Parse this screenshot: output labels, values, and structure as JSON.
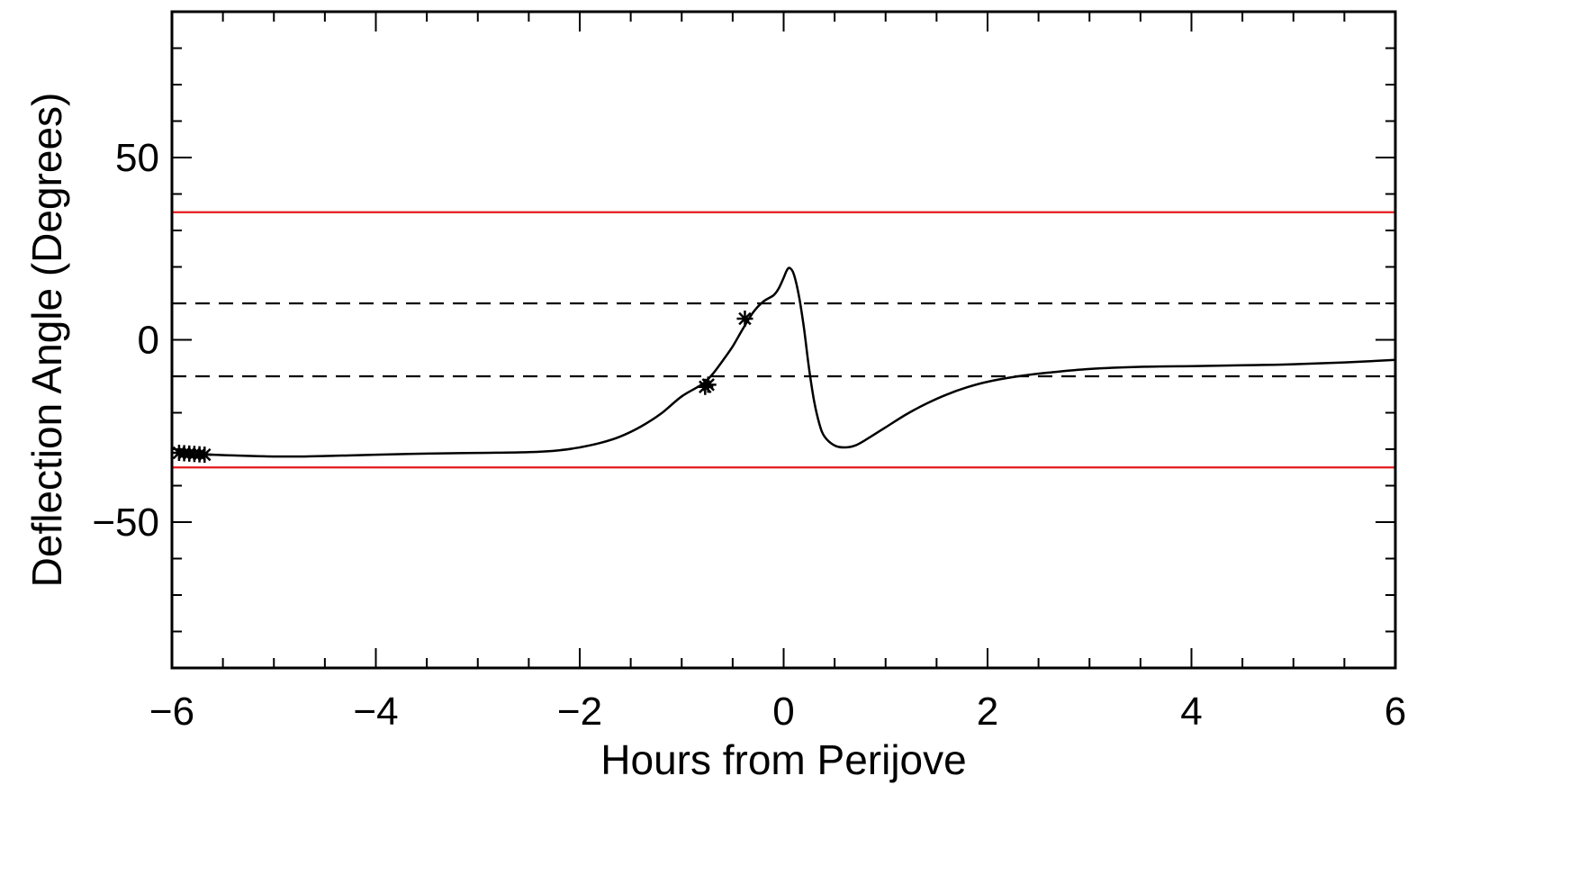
{
  "chart_data": {
    "type": "line",
    "title": "",
    "xlabel": "Hours from Perijove",
    "ylabel": "Deflection Angle (Degrees)",
    "xlim": [
      -6,
      6
    ],
    "ylim": [
      -90,
      90
    ],
    "x_ticks": [
      {
        "value": -6,
        "label": "−6"
      },
      {
        "value": -4,
        "label": "−4"
      },
      {
        "value": -2,
        "label": "−2"
      },
      {
        "value": 0,
        "label": "0"
      },
      {
        "value": 2,
        "label": "2"
      },
      {
        "value": 4,
        "label": "4"
      },
      {
        "value": 6,
        "label": "6"
      }
    ],
    "y_ticks": [
      {
        "value": 50,
        "label": "50"
      },
      {
        "value": 0,
        "label": "0"
      },
      {
        "value": -50,
        "label": "−50"
      }
    ],
    "x_minor_step": 0.5,
    "y_minor_step": 10,
    "grid": false,
    "reference_lines": [
      {
        "y": 35,
        "style": "solid",
        "color": "#e41a1c"
      },
      {
        "y": -35,
        "style": "solid",
        "color": "#e41a1c"
      },
      {
        "y": 10,
        "style": "dashed",
        "color": "#000000"
      },
      {
        "y": -10,
        "style": "dashed",
        "color": "#000000"
      }
    ],
    "series": [
      {
        "color": "#000000",
        "x": [
          -5.9,
          -5.6,
          -5.3,
          -5.0,
          -4.7,
          -4.4,
          -4.0,
          -3.5,
          -3.0,
          -2.5,
          -2.2,
          -2.0,
          -1.8,
          -1.6,
          -1.4,
          -1.2,
          -1.0,
          -0.8,
          -0.7,
          -0.6,
          -0.5,
          -0.4,
          -0.3,
          -0.2,
          -0.1,
          -0.05,
          0.0,
          0.03,
          0.06,
          0.1,
          0.15,
          0.2,
          0.25,
          0.3,
          0.35,
          0.4,
          0.5,
          0.6,
          0.7,
          0.8,
          1.0,
          1.2,
          1.4,
          1.6,
          1.8,
          2.0,
          2.3,
          2.6,
          3.0,
          3.5,
          4.0,
          4.5,
          5.0,
          5.5,
          6.0
        ],
        "y": [
          -31.0,
          -31.5,
          -31.8,
          -32.0,
          -32.0,
          -31.8,
          -31.5,
          -31.2,
          -31.0,
          -30.8,
          -30.3,
          -29.5,
          -28.3,
          -26.5,
          -23.8,
          -20.2,
          -15.5,
          -12.2,
          -9.5,
          -5.8,
          -1.8,
          3.0,
          7.5,
          10.5,
          12.2,
          14.0,
          17.0,
          19.0,
          19.7,
          18.0,
          12.0,
          3.0,
          -8.0,
          -17.0,
          -23.0,
          -26.5,
          -29.0,
          -29.5,
          -29.0,
          -27.5,
          -24.0,
          -20.5,
          -17.5,
          -15.0,
          -13.0,
          -11.5,
          -10.0,
          -9.0,
          -8.0,
          -7.4,
          -7.2,
          -7.0,
          -6.7,
          -6.2,
          -5.5
        ]
      }
    ],
    "markers": [
      {
        "symbol": "asterisk",
        "x": -5.93,
        "y": -31.0
      },
      {
        "symbol": "asterisk",
        "x": -5.88,
        "y": -31.1
      },
      {
        "symbol": "asterisk",
        "x": -5.83,
        "y": -31.2
      },
      {
        "symbol": "asterisk",
        "x": -5.78,
        "y": -31.3
      },
      {
        "symbol": "asterisk",
        "x": -5.73,
        "y": -31.4
      },
      {
        "symbol": "asterisk",
        "x": -5.68,
        "y": -31.5
      },
      {
        "symbol": "asterisk",
        "x": -0.77,
        "y": -12.9
      },
      {
        "symbol": "asterisk",
        "x": -0.74,
        "y": -12.3
      },
      {
        "symbol": "asterisk",
        "x": -0.38,
        "y": 5.8
      }
    ]
  }
}
